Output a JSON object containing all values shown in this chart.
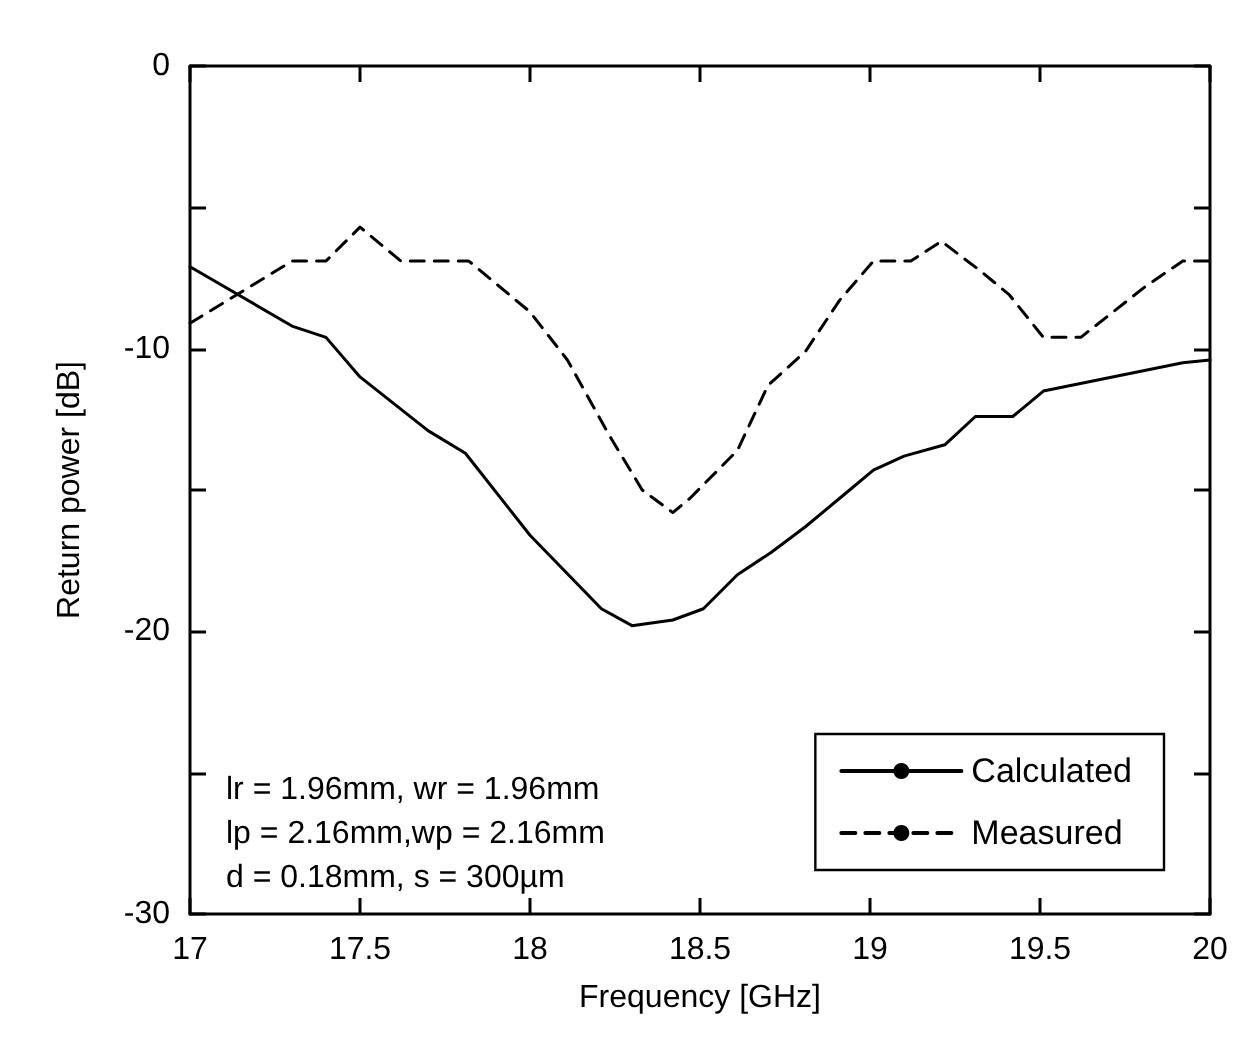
{
  "chart_data": {
    "type": "line",
    "xlabel": "Frequency [GHz]",
    "ylabel": "Return power [dB]",
    "xlim": [
      17,
      20
    ],
    "xticks": [
      17,
      17.5,
      18,
      18.5,
      19,
      19.5,
      20
    ],
    "ylim": [
      -30,
      0
    ],
    "yticks": [
      0,
      {
        "value": -5,
        "label": null
      },
      -10,
      {
        "value": -15,
        "label": null
      },
      -20,
      {
        "value": -25,
        "label": null
      },
      -30
    ],
    "grid": false,
    "legend": "bottom right",
    "marker": "none",
    "annotations": [
      "lr = 1.96mm, wr = 1.96mm",
      "lp = 2.16mm,wp = 2.16mm",
      "d = 0.18mm, s = 300µm"
    ],
    "series": [
      {
        "name": "Calculated",
        "color": "#000000",
        "line_style": "solid",
        "x": [
          17,
          17.3,
          17.4,
          17.5,
          17.7,
          17.81,
          18.0,
          18.21,
          18.3,
          18.42,
          18.51,
          18.61,
          18.71,
          18.81,
          18.91,
          19.01,
          19.1,
          19.22,
          19.31,
          19.42,
          19.51,
          19.92,
          20
        ],
        "values": [
          -7.1,
          -9.2,
          -9.6,
          -11.0,
          -12.9,
          -13.7,
          -16.6,
          -19.2,
          -19.8,
          -19.6,
          -19.2,
          -18.0,
          -17.2,
          -16.3,
          -15.3,
          -14.3,
          -13.8,
          -13.4,
          -12.4,
          -12.4,
          -11.5,
          -10.5,
          -10.4
        ]
      },
      {
        "name": "Measured",
        "color": "#000000",
        "line_style": "dashed",
        "x": [
          17,
          17.3,
          17.4,
          17.5,
          17.62,
          17.82,
          18.0,
          18.11,
          18.23,
          18.33,
          18.42,
          18.47,
          18.61,
          18.7,
          18.81,
          18.91,
          19.01,
          19.12,
          19.21,
          19.33,
          19.41,
          19.51,
          19.62,
          19.81,
          19.92,
          20
        ],
        "values": [
          -9.1,
          -6.9,
          -6.9,
          -5.7,
          -6.9,
          -6.9,
          -8.7,
          -10.4,
          -13.0,
          -15.0,
          -15.8,
          -15.3,
          -13.6,
          -11.3,
          -10.1,
          -8.3,
          -6.9,
          -6.9,
          -6.2,
          -7.3,
          -8.1,
          -9.6,
          -9.6,
          -7.8,
          -6.9,
          -6.9
        ]
      }
    ]
  }
}
